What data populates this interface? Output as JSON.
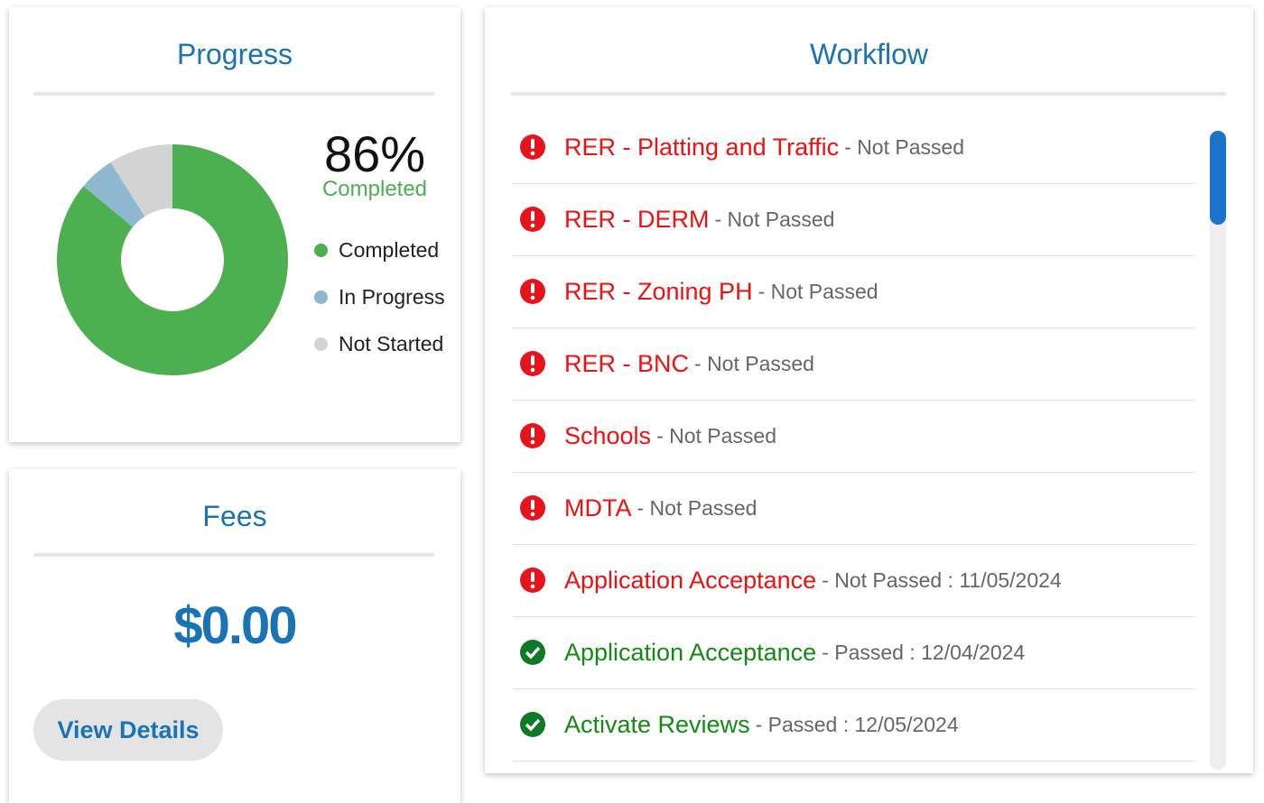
{
  "progress": {
    "title": "Progress",
    "center_label": "86%",
    "center_caption": "Completed",
    "chart": {
      "type": "pie",
      "categories": [
        "Completed",
        "In Progress",
        "Not Started"
      ],
      "values": [
        86,
        5,
        9
      ],
      "colors": [
        "#4caf50",
        "#8fb8d0",
        "#d3d3d3"
      ]
    }
  },
  "fees": {
    "title": "Fees",
    "amount": "$0.00",
    "button": "View Details"
  },
  "workflow": {
    "title": "Workflow",
    "items": [
      {
        "name": "RER - Platting and Traffic",
        "detail": "- Not Passed",
        "passed": false
      },
      {
        "name": "RER - DERM",
        "detail": "- Not Passed",
        "passed": false
      },
      {
        "name": "RER - Zoning PH",
        "detail": "- Not Passed",
        "passed": false
      },
      {
        "name": "RER - BNC",
        "detail": "- Not Passed",
        "passed": false
      },
      {
        "name": "Schools",
        "detail": "- Not Passed",
        "passed": false
      },
      {
        "name": "MDTA",
        "detail": "- Not Passed",
        "passed": false
      },
      {
        "name": "Application Acceptance",
        "detail": "- Not Passed : 11/05/2024",
        "passed": false
      },
      {
        "name": "Application Acceptance",
        "detail": "- Passed : 12/04/2024",
        "passed": true
      },
      {
        "name": "Activate Reviews",
        "detail": "- Passed : 12/05/2024",
        "passed": true
      }
    ]
  }
}
